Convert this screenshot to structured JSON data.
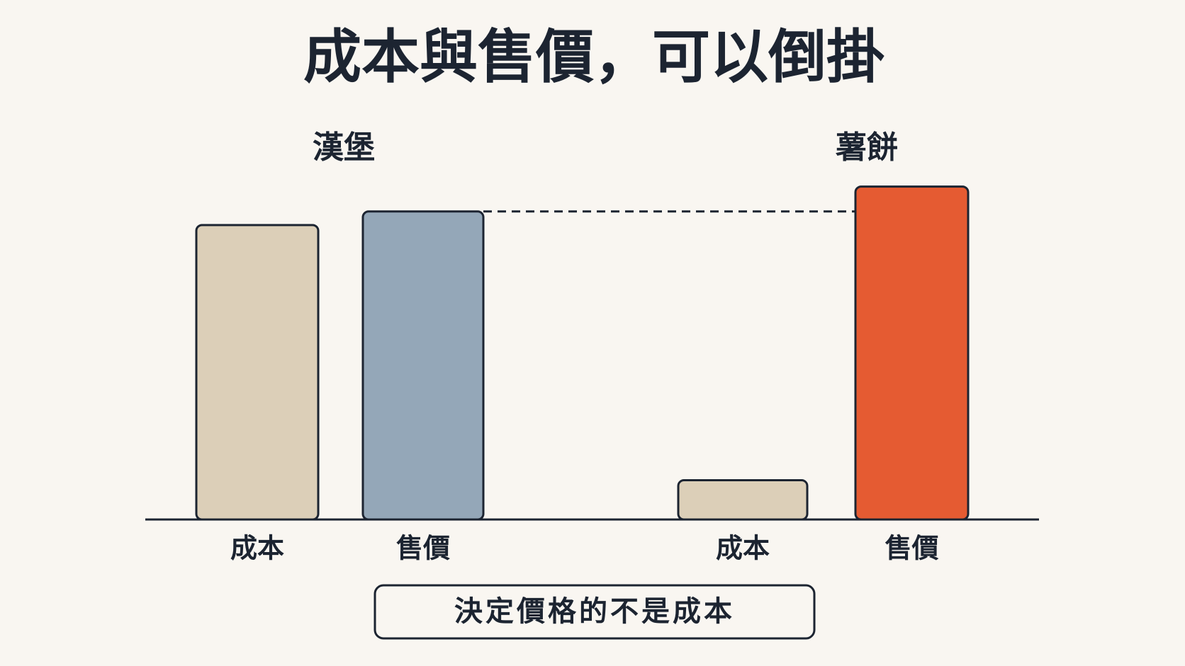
{
  "chart_data": {
    "type": "bar",
    "title": "成本與售價，可以倒掛",
    "groups": [
      "漢堡",
      "薯餅"
    ],
    "categories": [
      "成本",
      "售價",
      "成本",
      "售價"
    ],
    "values": [
      390,
      408,
      52,
      441
    ],
    "colors": [
      "#dccfb8",
      "#94a7b8",
      "#dccfb8",
      "#e55b32"
    ],
    "ylim": [
      0,
      450
    ],
    "annotation": "決定價格的不是成本"
  }
}
